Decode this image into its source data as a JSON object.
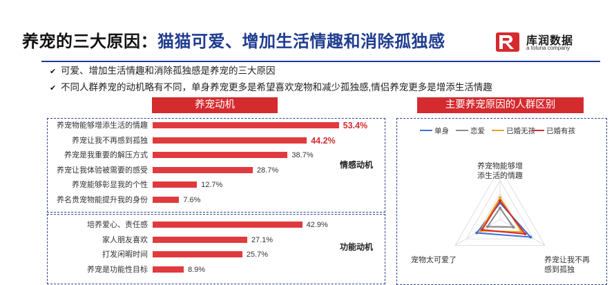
{
  "header": {
    "title_black": "养宠的三大原因：",
    "title_blue": "猫猫可爱、增加生活情趣和消除孤独感"
  },
  "logo": {
    "name": "库润数据",
    "sub": "a toluna company"
  },
  "bullets": [
    "可爱、增加生活情趣和消除孤独感是养宠的三大原因",
    "不同人群养宠的动机略有不同，单身养宠更多是希望喜欢宠物和减少孤独感,情侣养宠更多是增添生活情趣"
  ],
  "colors": {
    "accent": "#d42b2f",
    "brand_blue": "#1f3c8f",
    "bar": "#e03a3e"
  },
  "chart_data": [
    {
      "type": "bar",
      "title": "养宠动机",
      "groups": [
        {
          "name": "情感动机",
          "categories": [
            "养宠物能够增添生活的情趣",
            "养宠让我不再感到孤独",
            "养宠是我重要的解压方式",
            "养宠让我体验被需要的感受",
            "养宠能够彰显我的个性",
            "养名贵宠物能提升我的身份"
          ],
          "values": [
            53.4,
            44.2,
            38.7,
            28.7,
            12.7,
            7.6
          ],
          "labels": [
            "53.4%",
            "44.2%",
            "38.7%",
            "28.7%",
            "12.7%",
            "7.6%"
          ],
          "highlighted": [
            true,
            true,
            false,
            false,
            false,
            false
          ]
        },
        {
          "name": "功能动机",
          "categories": [
            "培养爱心、责任感",
            "家人朋友喜欢",
            "打发闲暇时间",
            "养宠是功能性目标"
          ],
          "values": [
            42.9,
            27.1,
            25.7,
            8.9
          ],
          "labels": [
            "42.9%",
            "27.1%",
            "25.7%",
            "8.9%"
          ],
          "highlighted": [
            false,
            false,
            false,
            false
          ]
        }
      ]
    },
    {
      "type": "radar",
      "title": "主要养宠原因的人群区别",
      "axes": [
        "养宠物能够增添生活的情趣",
        "养宠让我不再感到孤独",
        "宠物太可爱了"
      ],
      "series": [
        {
          "name": "单身",
          "color": "#3b6fd8",
          "values": [
            0.32,
            0.68,
            0.52
          ]
        },
        {
          "name": "恋爱",
          "color": "#8a8a8a",
          "values": [
            0.22,
            0.3,
            0.28
          ]
        },
        {
          "name": "已婚无孩",
          "color": "#e6a21b",
          "values": [
            0.42,
            0.48,
            0.44
          ]
        },
        {
          "name": "已婚有孩",
          "color": "#d42b2f",
          "values": [
            0.36,
            0.56,
            0.4
          ]
        }
      ],
      "legend": "top"
    }
  ]
}
